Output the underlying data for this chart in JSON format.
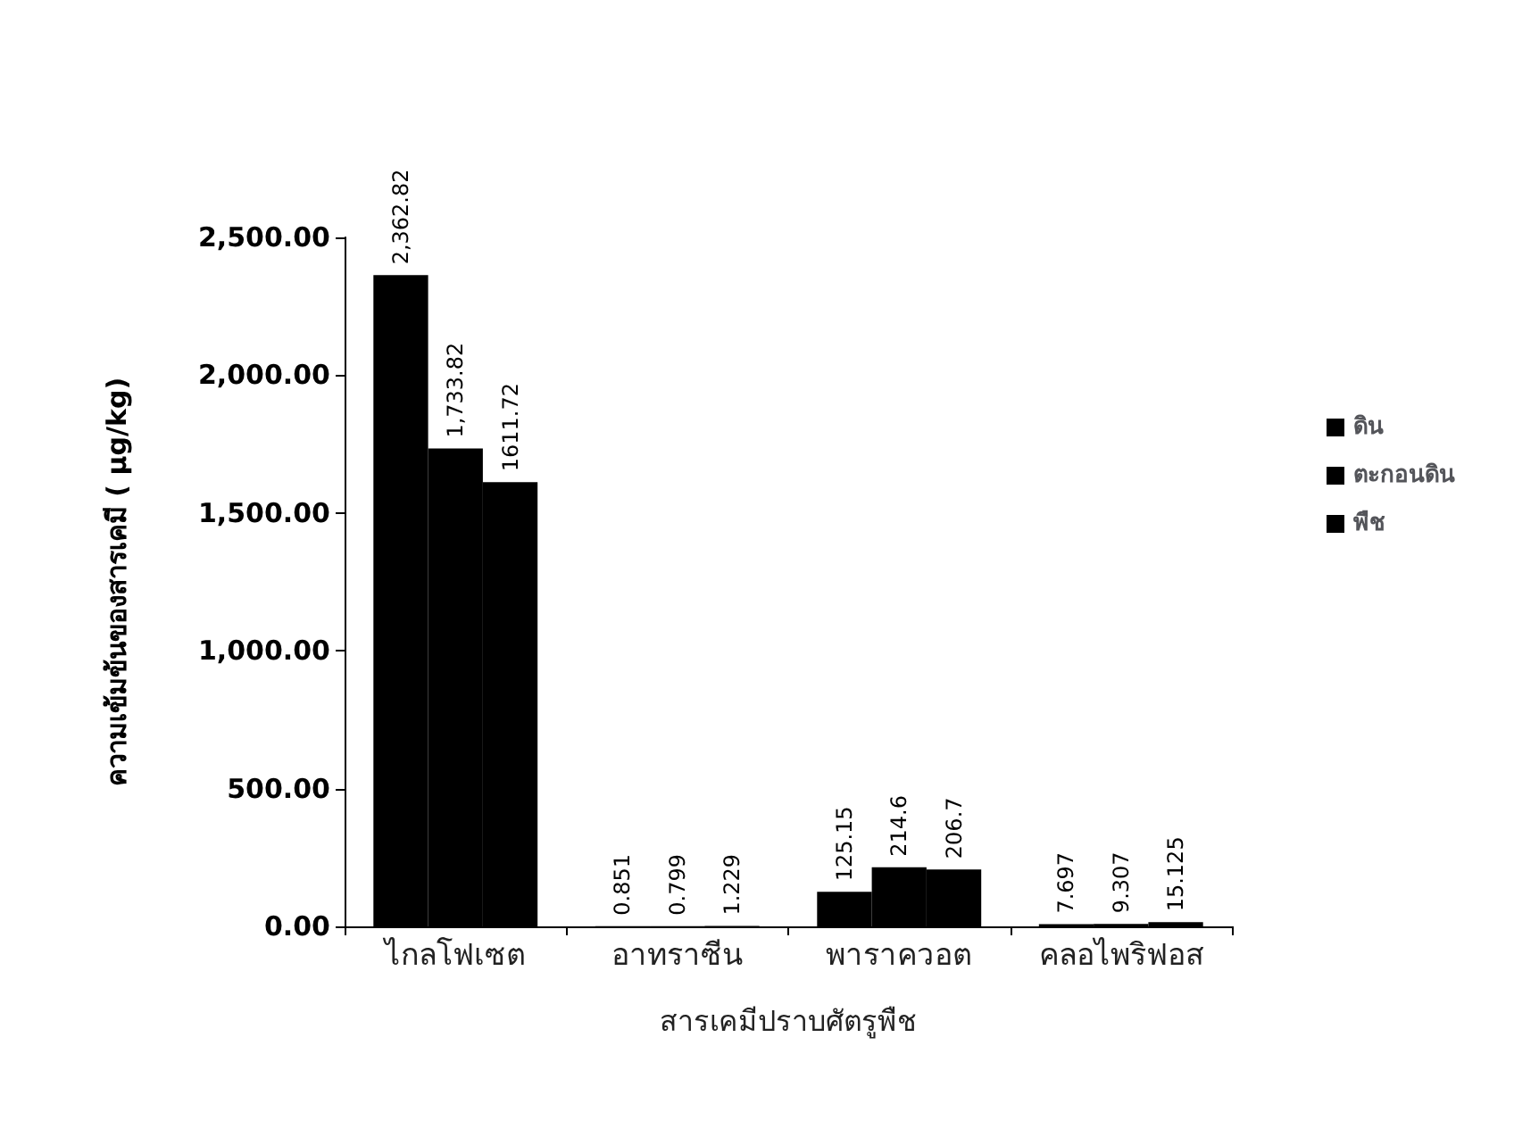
{
  "chart_data": {
    "type": "bar",
    "ylabel": "ความเข้มข้นของสารเคมี ( µg/kg)",
    "xlabel": "สารเคมีปราบศัตรูพืช",
    "categories": [
      "ไกลโฟเซต",
      "อาทราซีน",
      "พาราควอต",
      "คลอไพริฟอส"
    ],
    "series": [
      {
        "name": "ดิน",
        "color": "#000000",
        "values": [
          2362.82,
          0.851,
          125.15,
          7.697
        ],
        "value_labels": [
          "2,362.82",
          "0.851",
          "125.15",
          "7.697"
        ]
      },
      {
        "name": "ตะกอนดิน",
        "color": "#000000",
        "values": [
          1733.82,
          0.799,
          214.6,
          9.307
        ],
        "value_labels": [
          "1,733.82",
          "0.799",
          "214.6",
          "9.307"
        ]
      },
      {
        "name": "พืช",
        "color": "#000000",
        "values": [
          1611.72,
          1.229,
          206.7,
          15.125
        ],
        "value_labels": [
          "1611.72",
          "1.229",
          "206.7",
          "15.125"
        ]
      }
    ],
    "ylim": [
      0,
      2500
    ],
    "yticks": [
      {
        "value": 0,
        "label": "0.00"
      },
      {
        "value": 500,
        "label": "500.00"
      },
      {
        "value": 1000,
        "label": "1,000.00"
      },
      {
        "value": 1500,
        "label": "1,500.00"
      },
      {
        "value": 2000,
        "label": "2,000.00"
      },
      {
        "value": 2500,
        "label": "2,500.00"
      }
    ],
    "grid": false,
    "legend": "right"
  }
}
